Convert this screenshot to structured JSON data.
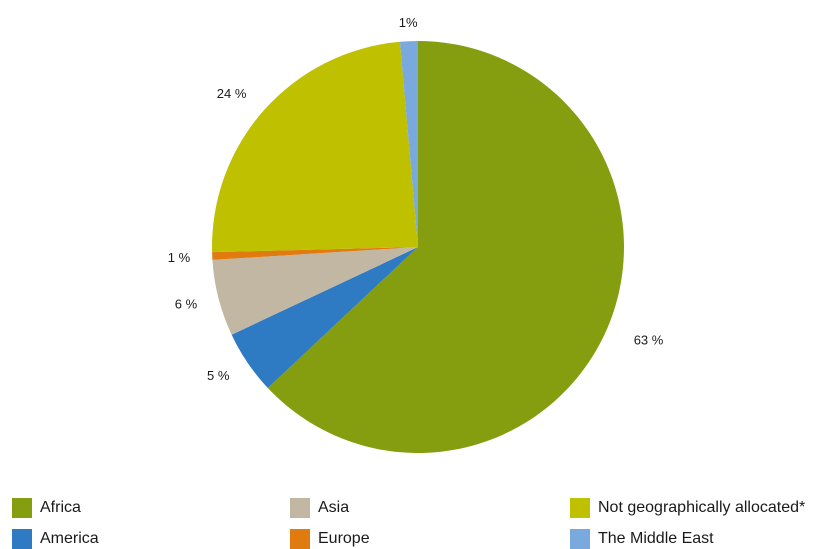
{
  "chart_data": {
    "type": "pie",
    "title": "",
    "start": "top, clockwise",
    "slices": [
      {
        "name": "Africa",
        "value": 63,
        "label": "63 %",
        "color": "#849e0f"
      },
      {
        "name": "America",
        "value": 5,
        "label": "5 %",
        "color": "#2e7bc4"
      },
      {
        "name": "Asia",
        "value": 6,
        "label": "6 %",
        "color": "#c2b7a3"
      },
      {
        "name": "Europe",
        "value": 0.6,
        "label": "1 %",
        "color": "#e07b10"
      },
      {
        "name": "Not geographically allocated*",
        "value": 24,
        "label": "24 %",
        "color": "#bfc000"
      },
      {
        "name": "The Middle East",
        "value": 1.4,
        "label": "1%",
        "color": "#7aa9de"
      }
    ],
    "legend": {
      "placement": "bottom",
      "order": [
        "Africa",
        "Asia",
        "Not geographically allocated*",
        "America",
        "Europe",
        "The Middle East"
      ]
    }
  }
}
